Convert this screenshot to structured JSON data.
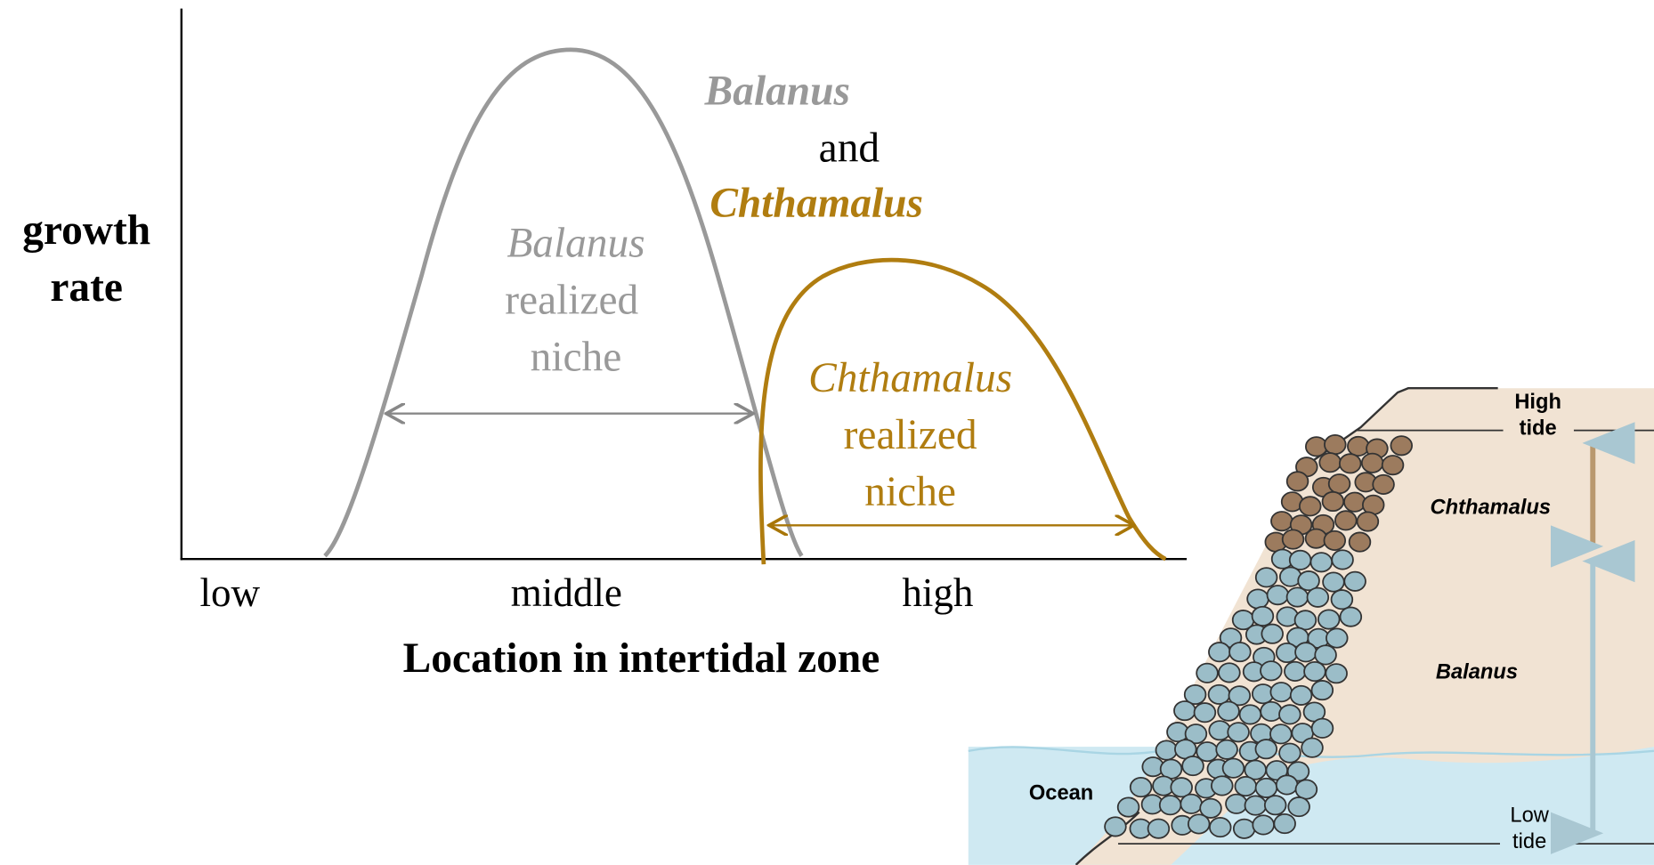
{
  "y_axis_label": [
    "growth",
    "rate"
  ],
  "x_axis": {
    "categories": [
      "low",
      "middle",
      "high"
    ],
    "title": "Location in intertidal zone"
  },
  "header": {
    "species_1": "Balanus",
    "joiner": "and",
    "species_2": "Chthamalus"
  },
  "balanus_niche": [
    "Balanus",
    "realized",
    "niche"
  ],
  "chthamalus_niche": [
    "Chthamalus",
    "realized",
    "niche"
  ],
  "inset": {
    "high_tide": [
      "High",
      "tide"
    ],
    "low_tide": [
      "Low",
      "tide"
    ],
    "upper_zone": "Chthamalus",
    "lower_zone": "Balanus",
    "water": "Ocean"
  }
}
